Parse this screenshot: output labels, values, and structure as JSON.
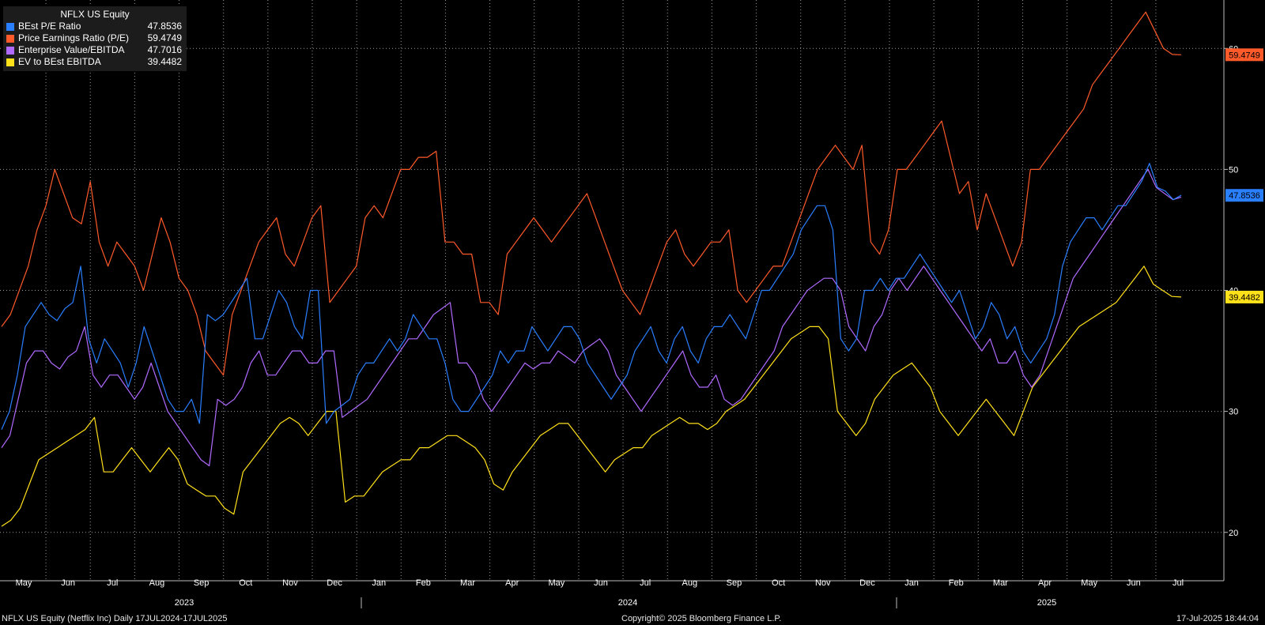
{
  "chart_data": {
    "type": "line",
    "title": "NFLX US Equity",
    "y_axis": {
      "min": 16,
      "max": 64,
      "ticks": [
        20,
        30,
        40,
        50,
        60
      ],
      "side": "right"
    },
    "x_axis": {
      "months": [
        "May",
        "Jun",
        "Jul",
        "Aug",
        "Sep",
        "Oct",
        "Nov",
        "Dec",
        "Jan",
        "Feb",
        "Mar",
        "Apr",
        "May",
        "Jun",
        "Jul",
        "Aug",
        "Sep",
        "Oct",
        "Nov",
        "Dec",
        "Jan",
        "Feb",
        "Mar",
        "Apr",
        "May",
        "Jun",
        "Jul"
      ],
      "years": [
        "2023",
        "2024",
        "2025"
      ]
    },
    "grid": true,
    "legend_position": "top-left",
    "series": [
      {
        "name": "BEst P/E Ratio",
        "last": "47.8536",
        "color": "#2a7fff",
        "values": [
          28.5,
          30,
          33,
          37,
          38,
          39,
          38,
          37.5,
          38.5,
          39,
          42,
          36,
          34,
          36,
          35,
          34,
          32,
          34,
          37,
          35,
          33,
          31,
          30,
          30,
          31,
          29,
          38,
          37.5,
          38,
          39,
          40,
          41,
          36,
          36,
          38,
          40,
          39,
          37,
          36,
          40,
          40,
          29,
          30,
          30.5,
          31,
          33,
          34,
          34,
          35,
          36,
          35,
          36,
          38,
          37,
          36,
          36,
          34,
          31,
          30,
          30,
          31,
          32,
          33,
          35,
          34,
          35,
          35,
          37,
          36,
          35,
          36,
          37,
          37,
          36,
          34,
          33,
          32,
          31,
          32,
          33,
          35,
          36,
          37,
          35,
          34,
          36,
          37,
          35,
          34,
          36,
          37,
          37,
          38,
          37,
          36,
          38,
          40,
          40,
          41,
          42,
          43,
          45,
          46,
          47,
          47,
          45,
          36,
          35,
          36,
          40,
          40,
          41,
          40,
          41,
          41,
          42,
          43,
          42,
          41,
          40,
          39,
          40,
          38,
          36,
          37,
          39,
          38,
          36,
          37,
          35,
          34,
          35,
          36,
          38,
          42,
          44,
          45,
          46,
          46,
          45,
          46,
          47,
          47,
          48,
          49,
          50.5,
          48.5,
          48.2,
          47.5,
          47.8536
        ]
      },
      {
        "name": "Price Earnings Ratio (P/E)",
        "last": "59.4749",
        "color": "#ff5a2a",
        "values": [
          37,
          38,
          40,
          42,
          45,
          47,
          50,
          48,
          46,
          45.5,
          49,
          44,
          42,
          44,
          43,
          42,
          40,
          43,
          46,
          44,
          41,
          40,
          38,
          35,
          34,
          33,
          38,
          40,
          42,
          44,
          45,
          46,
          43,
          42,
          44,
          46,
          47,
          39,
          40,
          41,
          42,
          46,
          47,
          46,
          48,
          50,
          50,
          51,
          51,
          51.5,
          44,
          44,
          43,
          43,
          39,
          39,
          38,
          43,
          44,
          45,
          46,
          45,
          44,
          45,
          46,
          47,
          48,
          46,
          44,
          42,
          40,
          39,
          38,
          40,
          42,
          44,
          45,
          43,
          42,
          43,
          44,
          44,
          45,
          40,
          39,
          40,
          41,
          42,
          42,
          44,
          46,
          48,
          50,
          51,
          52,
          51,
          50,
          52,
          44,
          43,
          45,
          50,
          50,
          51,
          52,
          53,
          54,
          51,
          48,
          49,
          45,
          48,
          46,
          44,
          42,
          44,
          50,
          50,
          51,
          52,
          53,
          54,
          55,
          57,
          58,
          59,
          60,
          61,
          62,
          63,
          61.5,
          60,
          59.5,
          59.4749
        ]
      },
      {
        "name": "Enterprise Value/EBITDA",
        "last": "47.7016",
        "color": "#b06aff",
        "values": [
          27,
          28,
          31,
          34,
          35,
          35,
          34,
          33.5,
          34.5,
          35,
          37,
          33,
          32,
          33,
          33,
          32,
          31,
          32,
          34,
          32,
          30,
          29,
          28,
          27,
          26,
          25.5,
          31,
          30.5,
          31,
          32,
          34,
          35,
          33,
          33,
          34,
          35,
          35,
          34,
          34,
          35,
          35,
          29.5,
          30,
          30.5,
          31,
          32,
          33,
          34,
          35,
          36,
          36,
          37,
          38,
          38.5,
          39,
          34,
          34,
          33,
          31,
          30,
          31,
          32,
          33,
          34,
          33.5,
          34,
          34,
          35,
          34.5,
          34,
          35,
          35.5,
          36,
          35,
          33,
          32,
          31,
          30,
          31,
          32,
          33,
          34,
          35,
          33,
          32,
          32,
          33,
          31,
          30.5,
          31,
          32,
          33,
          34,
          35,
          37,
          38,
          39,
          40,
          40.5,
          41,
          41,
          40,
          37,
          36,
          35,
          37,
          38,
          40,
          41,
          40,
          41,
          42,
          41,
          40,
          39,
          38,
          37,
          36,
          35,
          36,
          34,
          34,
          35,
          33,
          32,
          33,
          35,
          37,
          39,
          41,
          42,
          43,
          44,
          45,
          46,
          47,
          48,
          49,
          50,
          48.5,
          48,
          47.5,
          47.7016
        ]
      },
      {
        "name": "EV to BEst EBITDA",
        "last": "39.4482",
        "color": "#ffe11a",
        "values": [
          20.5,
          21,
          22,
          24,
          26,
          26.5,
          27,
          27.5,
          28,
          28.5,
          29.5,
          25,
          25,
          26,
          27,
          26,
          25,
          26,
          27,
          26,
          24,
          23.5,
          23,
          23,
          22,
          21.5,
          25,
          26,
          27,
          28,
          29,
          29.5,
          29,
          28,
          29,
          30,
          30,
          22.5,
          23,
          23,
          24,
          25,
          25.5,
          26,
          26,
          27,
          27,
          27.5,
          28,
          28,
          27.5,
          27,
          26,
          24,
          23.5,
          25,
          26,
          27,
          28,
          28.5,
          29,
          29,
          28,
          27,
          26,
          25,
          26,
          26.5,
          27,
          27,
          28,
          28.5,
          29,
          29.5,
          29,
          29,
          28.5,
          29,
          30,
          30.5,
          31,
          32,
          33,
          34,
          35,
          36,
          36.5,
          37,
          37,
          36,
          30,
          29,
          28,
          29,
          31,
          32,
          33,
          33.5,
          34,
          33,
          32,
          30,
          29,
          28,
          29,
          30,
          31,
          30,
          29,
          28,
          30,
          32,
          33,
          34,
          35,
          36,
          37,
          37.5,
          38,
          38.5,
          39,
          40,
          41,
          42,
          40.5,
          40,
          39.5,
          39.4482
        ]
      }
    ]
  },
  "axis_labels": {
    "right_ticks": [
      "20",
      "30",
      "40",
      "50",
      "60"
    ]
  },
  "last_value_tags": [
    {
      "series": "Price Earnings Ratio (P/E)",
      "label": "59.4749",
      "value": 59.4749,
      "color": "#ff5a2a"
    },
    {
      "series": "BEst P/E Ratio",
      "label": "47.8536",
      "value": 47.8536,
      "color": "#2a7fff"
    },
    {
      "series": "EV to BEst EBITDA",
      "label": "39.4482",
      "value": 39.4482,
      "color": "#ffe11a"
    }
  ],
  "footer": {
    "left": "NFLX US Equity (Netflix Inc)  Daily 17JUL2024-17JUL2025",
    "center": "Copyright© 2025 Bloomberg Finance L.P.",
    "right": "17-Jul-2025 18:44:04"
  }
}
